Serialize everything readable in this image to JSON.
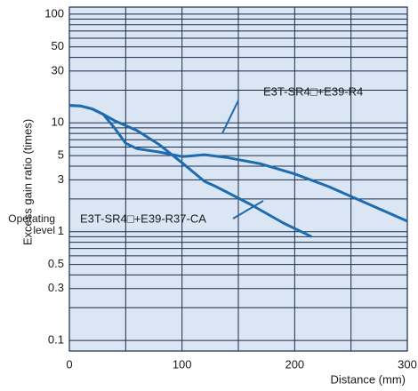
{
  "chart_data": {
    "type": "line",
    "y_label": "Excess gain ratio (times)",
    "x_label": "Distance (mm)",
    "annotation": [
      "Operating",
      "level"
    ],
    "log_y": true,
    "grid": true,
    "background": "#dbe6f4",
    "grid_color": "#1c2a4a",
    "xlim": [
      0,
      300
    ],
    "xticks": [
      0,
      100,
      200,
      300
    ],
    "xminorticks": [
      50,
      150,
      250
    ],
    "ylim": [
      0.08,
      116
    ],
    "yticks": [
      0.1,
      0.3,
      0.5,
      1,
      3,
      5,
      10,
      30,
      50,
      100
    ],
    "yminorticks": [
      0.2,
      0.4,
      0.6,
      0.7,
      0.8,
      0.9,
      2,
      4,
      6,
      7,
      8,
      9,
      20,
      40,
      60,
      70,
      80,
      90
    ],
    "series": [
      {
        "name": "E3T-SR4□+E39-R4",
        "color": "#1e6bb0",
        "x": [
          0,
          10,
          20,
          30,
          40,
          50,
          60,
          80,
          100,
          110,
          120,
          140,
          170,
          200,
          230,
          260,
          300
        ],
        "values": [
          14.5,
          14.3,
          13.5,
          12,
          9,
          6.5,
          5.8,
          5.4,
          4.9,
          5,
          5.1,
          4.8,
          4.2,
          3.4,
          2.6,
          1.9,
          1.25
        ]
      },
      {
        "name": "E3T-SR4□+E39-R37-CA",
        "color": "#1e6bb0",
        "x": [
          0,
          10,
          20,
          30,
          40,
          60,
          80,
          100,
          120,
          130,
          160,
          190,
          215
        ],
        "values": [
          14.5,
          14.3,
          13.5,
          12,
          10.5,
          8.5,
          6.3,
          4.3,
          2.9,
          2.6,
          1.8,
          1.2,
          0.9
        ]
      }
    ]
  }
}
